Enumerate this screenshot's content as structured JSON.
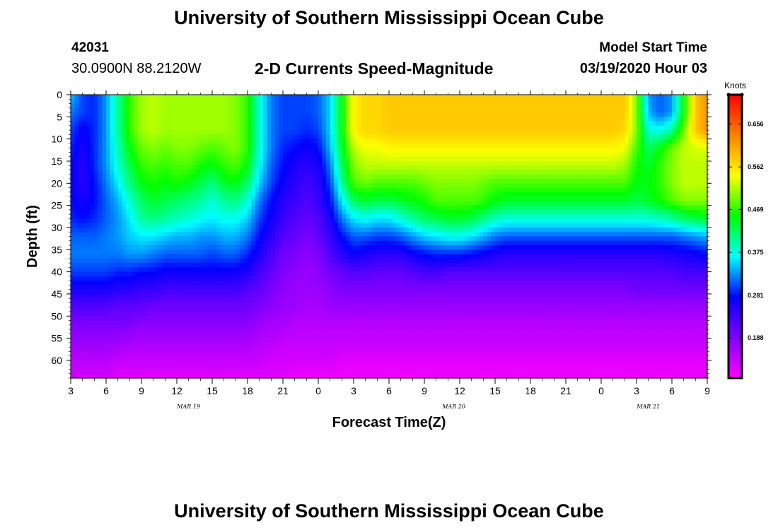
{
  "header": {
    "title": "University of Southern Mississippi Ocean Cube",
    "station_id": "42031",
    "station_coords": "30.0900N 88.2120W",
    "chart_title": "2-D Currents Speed-Magnitude",
    "model_start_label": "Model Start Time",
    "model_start_value": "03/19/2020 Hour 03"
  },
  "footer": {
    "title": "University of Southern Mississippi Ocean Cube"
  },
  "chart_data": {
    "type": "heatmap",
    "title": "2-D Currents Speed-Magnitude",
    "xlabel": "Forecast Time(Z)",
    "ylabel": "Depth (ft)",
    "x_ticks": [
      "3",
      "6",
      "9",
      "12",
      "15",
      "18",
      "21",
      "0",
      "3",
      "6",
      "9",
      "12",
      "15",
      "18",
      "21",
      "0",
      "3",
      "6",
      "9"
    ],
    "x_range_hours": [
      0,
      54
    ],
    "date_labels": [
      {
        "text": "MAR 19",
        "hour": 10
      },
      {
        "text": "MAR 20",
        "hour": 32.5
      },
      {
        "text": "MAR 21",
        "hour": 49
      }
    ],
    "y_ticks": [
      0,
      5,
      10,
      15,
      20,
      25,
      30,
      35,
      40,
      45,
      50,
      55,
      60
    ],
    "ylim": [
      0,
      64
    ],
    "colorbar": {
      "unit": "Knots",
      "ticks": [
        0.188,
        0.281,
        0.375,
        0.469,
        0.562,
        0.656
      ],
      "range": [
        0.1,
        0.72
      ],
      "colors": [
        "#ff00ff",
        "#8000ff",
        "#0000ff",
        "#00ffff",
        "#00ff00",
        "#ffff00",
        "#ff8000",
        "#ff0000"
      ]
    },
    "hours": [
      0,
      1,
      2,
      3,
      4,
      5,
      6,
      7,
      8,
      9,
      10,
      11,
      12,
      13,
      14,
      15,
      16,
      17,
      18,
      19,
      20,
      21,
      22,
      23,
      24,
      25,
      26,
      27,
      28,
      29,
      30,
      31,
      32,
      33,
      34,
      35,
      36,
      37,
      38,
      39,
      40,
      41,
      42,
      43,
      44,
      45,
      46,
      47,
      48,
      49,
      50,
      51,
      52,
      53,
      54
    ],
    "depths": [
      0,
      4,
      8,
      12,
      16,
      20,
      24,
      28,
      32,
      36,
      40,
      44,
      48,
      52,
      56,
      60,
      64
    ],
    "speed_knots": [
      [
        0.35,
        0.3,
        0.29,
        0.33,
        0.4,
        0.47,
        0.51,
        0.52,
        0.51,
        0.51,
        0.51,
        0.51,
        0.51,
        0.51,
        0.5,
        0.47,
        0.38,
        0.32,
        0.3,
        0.3,
        0.3,
        0.31,
        0.35,
        0.45,
        0.55,
        0.57,
        0.57,
        0.58,
        0.58,
        0.58,
        0.58,
        0.58,
        0.58,
        0.58,
        0.58,
        0.58,
        0.58,
        0.58,
        0.58,
        0.58,
        0.58,
        0.58,
        0.58,
        0.58,
        0.58,
        0.58,
        0.58,
        0.58,
        0.5,
        0.33,
        0.31,
        0.33,
        0.45,
        0.58,
        0.62
      ],
      [
        0.32,
        0.3,
        0.29,
        0.33,
        0.4,
        0.47,
        0.51,
        0.52,
        0.51,
        0.51,
        0.51,
        0.51,
        0.51,
        0.51,
        0.5,
        0.47,
        0.38,
        0.32,
        0.3,
        0.3,
        0.3,
        0.31,
        0.35,
        0.45,
        0.55,
        0.57,
        0.57,
        0.58,
        0.58,
        0.58,
        0.58,
        0.58,
        0.58,
        0.58,
        0.58,
        0.58,
        0.58,
        0.58,
        0.58,
        0.58,
        0.58,
        0.58,
        0.58,
        0.58,
        0.58,
        0.58,
        0.58,
        0.58,
        0.5,
        0.34,
        0.31,
        0.33,
        0.45,
        0.58,
        0.62
      ],
      [
        0.3,
        0.27,
        0.29,
        0.33,
        0.4,
        0.47,
        0.51,
        0.52,
        0.51,
        0.51,
        0.51,
        0.51,
        0.51,
        0.51,
        0.5,
        0.47,
        0.38,
        0.32,
        0.3,
        0.3,
        0.29,
        0.3,
        0.35,
        0.45,
        0.55,
        0.57,
        0.57,
        0.58,
        0.58,
        0.58,
        0.58,
        0.58,
        0.58,
        0.58,
        0.58,
        0.58,
        0.58,
        0.58,
        0.58,
        0.58,
        0.58,
        0.58,
        0.58,
        0.58,
        0.58,
        0.58,
        0.58,
        0.57,
        0.5,
        0.38,
        0.37,
        0.4,
        0.49,
        0.58,
        0.62
      ],
      [
        0.29,
        0.26,
        0.29,
        0.33,
        0.39,
        0.45,
        0.49,
        0.5,
        0.49,
        0.5,
        0.5,
        0.49,
        0.48,
        0.49,
        0.5,
        0.47,
        0.38,
        0.32,
        0.29,
        0.28,
        0.27,
        0.28,
        0.34,
        0.44,
        0.52,
        0.54,
        0.54,
        0.55,
        0.55,
        0.55,
        0.55,
        0.55,
        0.55,
        0.55,
        0.55,
        0.55,
        0.55,
        0.55,
        0.55,
        0.55,
        0.55,
        0.55,
        0.55,
        0.55,
        0.55,
        0.55,
        0.55,
        0.54,
        0.48,
        0.42,
        0.45,
        0.49,
        0.52,
        0.53,
        0.53
      ],
      [
        0.28,
        0.25,
        0.29,
        0.33,
        0.38,
        0.43,
        0.47,
        0.48,
        0.47,
        0.48,
        0.48,
        0.46,
        0.45,
        0.47,
        0.48,
        0.45,
        0.37,
        0.31,
        0.28,
        0.26,
        0.25,
        0.26,
        0.32,
        0.42,
        0.5,
        0.52,
        0.52,
        0.52,
        0.52,
        0.52,
        0.52,
        0.52,
        0.52,
        0.52,
        0.52,
        0.52,
        0.52,
        0.52,
        0.52,
        0.52,
        0.52,
        0.52,
        0.52,
        0.52,
        0.52,
        0.52,
        0.52,
        0.51,
        0.46,
        0.44,
        0.47,
        0.5,
        0.52,
        0.52,
        0.52
      ],
      [
        0.28,
        0.25,
        0.28,
        0.32,
        0.36,
        0.41,
        0.45,
        0.46,
        0.45,
        0.46,
        0.45,
        0.43,
        0.41,
        0.44,
        0.45,
        0.42,
        0.35,
        0.3,
        0.27,
        0.25,
        0.23,
        0.25,
        0.3,
        0.4,
        0.48,
        0.49,
        0.48,
        0.48,
        0.48,
        0.48,
        0.49,
        0.5,
        0.5,
        0.5,
        0.5,
        0.49,
        0.48,
        0.48,
        0.48,
        0.48,
        0.48,
        0.48,
        0.48,
        0.48,
        0.48,
        0.48,
        0.48,
        0.48,
        0.45,
        0.45,
        0.47,
        0.5,
        0.52,
        0.52,
        0.52
      ],
      [
        0.28,
        0.26,
        0.28,
        0.31,
        0.34,
        0.38,
        0.42,
        0.44,
        0.43,
        0.42,
        0.41,
        0.4,
        0.38,
        0.4,
        0.41,
        0.38,
        0.32,
        0.28,
        0.25,
        0.24,
        0.22,
        0.24,
        0.28,
        0.36,
        0.42,
        0.44,
        0.43,
        0.43,
        0.44,
        0.45,
        0.46,
        0.48,
        0.48,
        0.48,
        0.48,
        0.47,
        0.45,
        0.44,
        0.44,
        0.44,
        0.44,
        0.44,
        0.44,
        0.44,
        0.44,
        0.44,
        0.44,
        0.44,
        0.43,
        0.44,
        0.46,
        0.48,
        0.5,
        0.5,
        0.5
      ],
      [
        0.29,
        0.28,
        0.29,
        0.31,
        0.33,
        0.36,
        0.4,
        0.41,
        0.4,
        0.39,
        0.38,
        0.37,
        0.36,
        0.37,
        0.37,
        0.35,
        0.3,
        0.27,
        0.24,
        0.22,
        0.21,
        0.22,
        0.26,
        0.32,
        0.36,
        0.37,
        0.36,
        0.36,
        0.38,
        0.4,
        0.42,
        0.43,
        0.44,
        0.44,
        0.43,
        0.41,
        0.39,
        0.38,
        0.38,
        0.38,
        0.38,
        0.38,
        0.38,
        0.38,
        0.38,
        0.38,
        0.38,
        0.38,
        0.38,
        0.38,
        0.39,
        0.4,
        0.42,
        0.43,
        0.44
      ],
      [
        0.31,
        0.31,
        0.31,
        0.32,
        0.33,
        0.35,
        0.36,
        0.36,
        0.35,
        0.34,
        0.34,
        0.33,
        0.33,
        0.34,
        0.34,
        0.32,
        0.28,
        0.25,
        0.22,
        0.21,
        0.19,
        0.21,
        0.24,
        0.28,
        0.31,
        0.31,
        0.3,
        0.3,
        0.31,
        0.33,
        0.35,
        0.36,
        0.37,
        0.37,
        0.36,
        0.34,
        0.32,
        0.31,
        0.31,
        0.31,
        0.31,
        0.31,
        0.31,
        0.31,
        0.31,
        0.31,
        0.31,
        0.31,
        0.31,
        0.31,
        0.31,
        0.31,
        0.32,
        0.33,
        0.34
      ],
      [
        0.32,
        0.32,
        0.32,
        0.32,
        0.32,
        0.33,
        0.33,
        0.32,
        0.31,
        0.31,
        0.31,
        0.31,
        0.3,
        0.31,
        0.31,
        0.29,
        0.26,
        0.23,
        0.2,
        0.19,
        0.18,
        0.19,
        0.22,
        0.25,
        0.27,
        0.26,
        0.25,
        0.25,
        0.25,
        0.27,
        0.28,
        0.29,
        0.29,
        0.29,
        0.28,
        0.27,
        0.26,
        0.25,
        0.25,
        0.25,
        0.25,
        0.25,
        0.25,
        0.25,
        0.25,
        0.25,
        0.25,
        0.25,
        0.25,
        0.25,
        0.25,
        0.26,
        0.26,
        0.27,
        0.28
      ],
      [
        0.3,
        0.3,
        0.3,
        0.3,
        0.29,
        0.29,
        0.28,
        0.28,
        0.27,
        0.27,
        0.27,
        0.27,
        0.27,
        0.27,
        0.27,
        0.26,
        0.23,
        0.21,
        0.19,
        0.18,
        0.17,
        0.18,
        0.2,
        0.21,
        0.22,
        0.22,
        0.21,
        0.21,
        0.21,
        0.22,
        0.23,
        0.23,
        0.22,
        0.22,
        0.22,
        0.22,
        0.22,
        0.22,
        0.22,
        0.22,
        0.22,
        0.22,
        0.22,
        0.22,
        0.22,
        0.22,
        0.22,
        0.22,
        0.22,
        0.22,
        0.22,
        0.22,
        0.23,
        0.23,
        0.23
      ],
      [
        0.26,
        0.26,
        0.26,
        0.26,
        0.25,
        0.25,
        0.24,
        0.24,
        0.23,
        0.23,
        0.23,
        0.23,
        0.23,
        0.23,
        0.23,
        0.22,
        0.21,
        0.19,
        0.18,
        0.17,
        0.17,
        0.17,
        0.18,
        0.19,
        0.19,
        0.19,
        0.19,
        0.19,
        0.19,
        0.19,
        0.19,
        0.19,
        0.19,
        0.19,
        0.19,
        0.19,
        0.19,
        0.19,
        0.19,
        0.19,
        0.19,
        0.19,
        0.19,
        0.19,
        0.19,
        0.19,
        0.19,
        0.19,
        0.2,
        0.2,
        0.2,
        0.2,
        0.2,
        0.2,
        0.2
      ],
      [
        0.22,
        0.22,
        0.22,
        0.22,
        0.21,
        0.21,
        0.21,
        0.2,
        0.2,
        0.2,
        0.2,
        0.2,
        0.2,
        0.2,
        0.2,
        0.2,
        0.19,
        0.18,
        0.17,
        0.17,
        0.16,
        0.16,
        0.17,
        0.17,
        0.17,
        0.17,
        0.17,
        0.17,
        0.17,
        0.17,
        0.17,
        0.17,
        0.17,
        0.17,
        0.17,
        0.17,
        0.17,
        0.17,
        0.17,
        0.17,
        0.17,
        0.17,
        0.17,
        0.17,
        0.17,
        0.17,
        0.17,
        0.17,
        0.17,
        0.17,
        0.17,
        0.17,
        0.17,
        0.17,
        0.17
      ],
      [
        0.19,
        0.19,
        0.19,
        0.19,
        0.19,
        0.19,
        0.18,
        0.18,
        0.18,
        0.18,
        0.18,
        0.18,
        0.18,
        0.18,
        0.18,
        0.18,
        0.17,
        0.16,
        0.16,
        0.15,
        0.15,
        0.15,
        0.15,
        0.15,
        0.15,
        0.15,
        0.15,
        0.15,
        0.15,
        0.15,
        0.15,
        0.15,
        0.15,
        0.15,
        0.15,
        0.15,
        0.15,
        0.15,
        0.15,
        0.15,
        0.15,
        0.15,
        0.15,
        0.15,
        0.15,
        0.15,
        0.15,
        0.15,
        0.15,
        0.15,
        0.15,
        0.15,
        0.15,
        0.15,
        0.15
      ],
      [
        0.17,
        0.17,
        0.17,
        0.17,
        0.17,
        0.16,
        0.16,
        0.16,
        0.16,
        0.16,
        0.16,
        0.16,
        0.16,
        0.16,
        0.16,
        0.16,
        0.15,
        0.15,
        0.14,
        0.14,
        0.14,
        0.14,
        0.14,
        0.14,
        0.14,
        0.14,
        0.14,
        0.14,
        0.14,
        0.14,
        0.14,
        0.14,
        0.14,
        0.14,
        0.14,
        0.14,
        0.14,
        0.14,
        0.14,
        0.14,
        0.14,
        0.14,
        0.14,
        0.14,
        0.14,
        0.14,
        0.14,
        0.14,
        0.14,
        0.14,
        0.14,
        0.14,
        0.14,
        0.14,
        0.14
      ],
      [
        0.15,
        0.15,
        0.15,
        0.15,
        0.14,
        0.14,
        0.14,
        0.14,
        0.14,
        0.14,
        0.14,
        0.14,
        0.14,
        0.14,
        0.14,
        0.14,
        0.14,
        0.13,
        0.13,
        0.13,
        0.13,
        0.13,
        0.13,
        0.12,
        0.12,
        0.12,
        0.12,
        0.12,
        0.12,
        0.12,
        0.12,
        0.12,
        0.12,
        0.12,
        0.12,
        0.12,
        0.12,
        0.12,
        0.12,
        0.12,
        0.12,
        0.12,
        0.12,
        0.12,
        0.12,
        0.12,
        0.12,
        0.12,
        0.12,
        0.12,
        0.12,
        0.12,
        0.12,
        0.12,
        0.12
      ],
      [
        0.13,
        0.13,
        0.13,
        0.13,
        0.12,
        0.12,
        0.12,
        0.12,
        0.12,
        0.12,
        0.12,
        0.12,
        0.12,
        0.12,
        0.12,
        0.12,
        0.12,
        0.12,
        0.12,
        0.11,
        0.11,
        0.11,
        0.11,
        0.11,
        0.11,
        0.11,
        0.11,
        0.11,
        0.11,
        0.11,
        0.11,
        0.11,
        0.11,
        0.11,
        0.11,
        0.11,
        0.11,
        0.11,
        0.11,
        0.11,
        0.11,
        0.11,
        0.11,
        0.11,
        0.11,
        0.11,
        0.11,
        0.11,
        0.11,
        0.11,
        0.11,
        0.11,
        0.11,
        0.11,
        0.11
      ]
    ]
  }
}
